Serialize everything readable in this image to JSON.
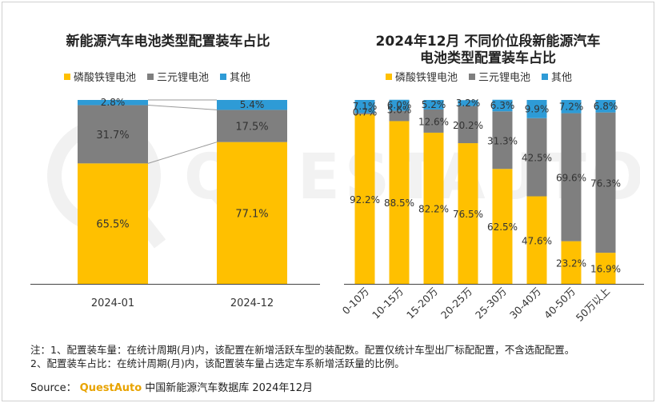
{
  "colors": {
    "lfp": "#ffc000",
    "ternary": "#7f7f7f",
    "other": "#2e9bd6",
    "brand": "#e8a300"
  },
  "left_title": "新能源汽车电池类型配置装车占比",
  "right_title_line1": "2024年12月 不同价位段新能源汽车",
  "right_title_line2": "电池类型配置装车占比",
  "legend": [
    "磷酸铁锂电池",
    "三元锂电池",
    "其他"
  ],
  "watermark": "QUESTAUTO",
  "notes": {
    "line1": "注：1、配置装车量：在统计周期(月)内，该配置在新增活跃车型的装配数。配置仅统计车型出厂标配配置，不含选配配置。",
    "line2": "2、配置装车占比：在统计周期(月)内，该配置装车量占选定车系新增活跃量的比例。"
  },
  "source": {
    "label": "Source：",
    "brand": "QuestAuto",
    "text": "中国新能源汽车数据库 2024年12月"
  },
  "chart_data": [
    {
      "type": "bar",
      "stacked": true,
      "title": "新能源汽车电池类型配置装车占比",
      "categories": [
        "2024-01",
        "2024-12"
      ],
      "series": [
        {
          "name": "磷酸铁锂电池",
          "values": [
            65.5,
            77.1
          ],
          "labels": [
            "65.5%",
            "77.1%"
          ]
        },
        {
          "name": "三元锂电池",
          "values": [
            31.7,
            17.5
          ],
          "labels": [
            "31.7%",
            "17.5%"
          ]
        },
        {
          "name": "其他",
          "values": [
            2.8,
            5.4
          ],
          "labels": [
            "2.8%",
            "5.4%"
          ]
        }
      ],
      "ylim": [
        0,
        100
      ],
      "legend_position": "top"
    },
    {
      "type": "bar",
      "stacked": true,
      "title": "2024年12月 不同价位段新能源汽车电池类型配置装车占比",
      "categories": [
        "0-10万",
        "10-15万",
        "15-20万",
        "20-25万",
        "25-30万",
        "30-40万",
        "40-50万",
        "50万以上"
      ],
      "series": [
        {
          "name": "磷酸铁锂电池",
          "values": [
            92.2,
            88.5,
            82.2,
            76.5,
            62.5,
            47.6,
            23.2,
            16.9
          ],
          "labels": [
            "92.2%",
            "88.5%",
            "82.2%",
            "76.5%",
            "62.5%",
            "47.6%",
            "23.2%",
            "16.9%"
          ]
        },
        {
          "name": "三元锂电池",
          "values": [
            0.7,
            5.6,
            12.6,
            20.2,
            31.3,
            42.5,
            69.6,
            76.3
          ],
          "labels": [
            "0.7%",
            "5.6%",
            "12.6%",
            "20.2%",
            "31.3%",
            "42.5%",
            "69.6%",
            "76.3%"
          ]
        },
        {
          "name": "其他",
          "values": [
            7.1,
            6.0,
            5.2,
            3.2,
            6.3,
            9.9,
            7.2,
            6.8
          ],
          "labels": [
            "7.1%",
            "6.0%",
            "5.2%",
            "3.2%",
            "6.3%",
            "9.9%",
            "7.2%",
            "6.8%"
          ]
        }
      ],
      "ylim": [
        0,
        100
      ],
      "legend_position": "top"
    }
  ]
}
